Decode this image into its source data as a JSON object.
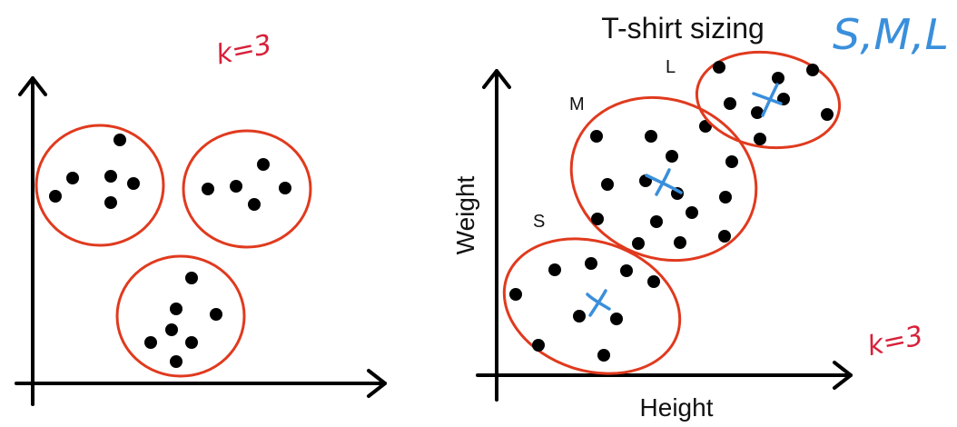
{
  "left_panel": {
    "annotation": "k=3"
  },
  "right_panel": {
    "title": "T-shirt sizing",
    "title_note": "S,M,L",
    "x_axis_label": "Height",
    "y_axis_label": "Weight",
    "annotation": "k=3",
    "clusters": [
      {
        "label": "S"
      },
      {
        "label": "M"
      },
      {
        "label": "L"
      }
    ]
  },
  "colors": {
    "ink": "#000000",
    "cluster_outline": "#e03a1e",
    "handwriting_red": "#d8203a",
    "centroid_blue": "#3a8fdc"
  }
}
